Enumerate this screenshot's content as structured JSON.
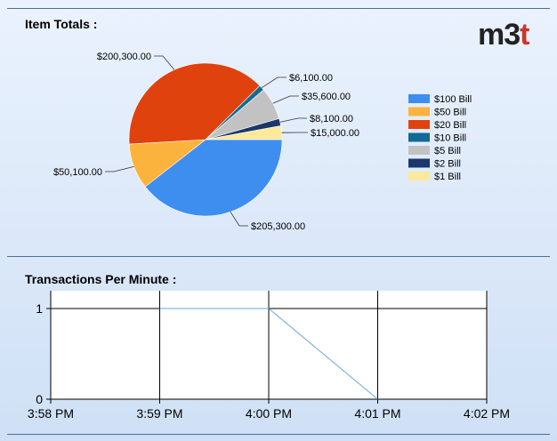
{
  "branding": {
    "logo_main": "m3",
    "logo_accent": "t"
  },
  "chart_data": [
    {
      "type": "pie",
      "title": "Item Totals :",
      "legend_placement": "right",
      "slices": [
        {
          "name": "$100 Bill",
          "value": 205300,
          "label": "$205,300.00",
          "color": "#3e8ef0"
        },
        {
          "name": "$50 Bill",
          "value": 50100,
          "label": "$50,100.00",
          "color": "#fbb33d"
        },
        {
          "name": "$20 Bill",
          "value": 200300,
          "label": "$200,300.00",
          "color": "#e0420e"
        },
        {
          "name": "$10 Bill",
          "value": 6100,
          "label": "$6,100.00",
          "color": "#136a94"
        },
        {
          "name": "$5 Bill",
          "value": 35600,
          "label": "$35,600.00",
          "color": "#c2c2c2"
        },
        {
          "name": "$2 Bill",
          "value": 8100,
          "label": "$8,100.00",
          "color": "#1c3869"
        },
        {
          "name": "$1 Bill",
          "value": 15000,
          "label": "$15,000.00",
          "color": "#fde99a"
        }
      ]
    },
    {
      "type": "line",
      "title": "Transactions Per Minute :",
      "x": [
        "3:58 PM",
        "3:59 PM",
        "4:00 PM",
        "4:01 PM",
        "4:02 PM"
      ],
      "series": [
        {
          "values": [
            null,
            1,
            1,
            0,
            null
          ],
          "color": "#6aa4e0"
        }
      ],
      "ylim": [
        0,
        1
      ],
      "y_ticks": [
        "0",
        "1"
      ],
      "grid": true
    }
  ]
}
